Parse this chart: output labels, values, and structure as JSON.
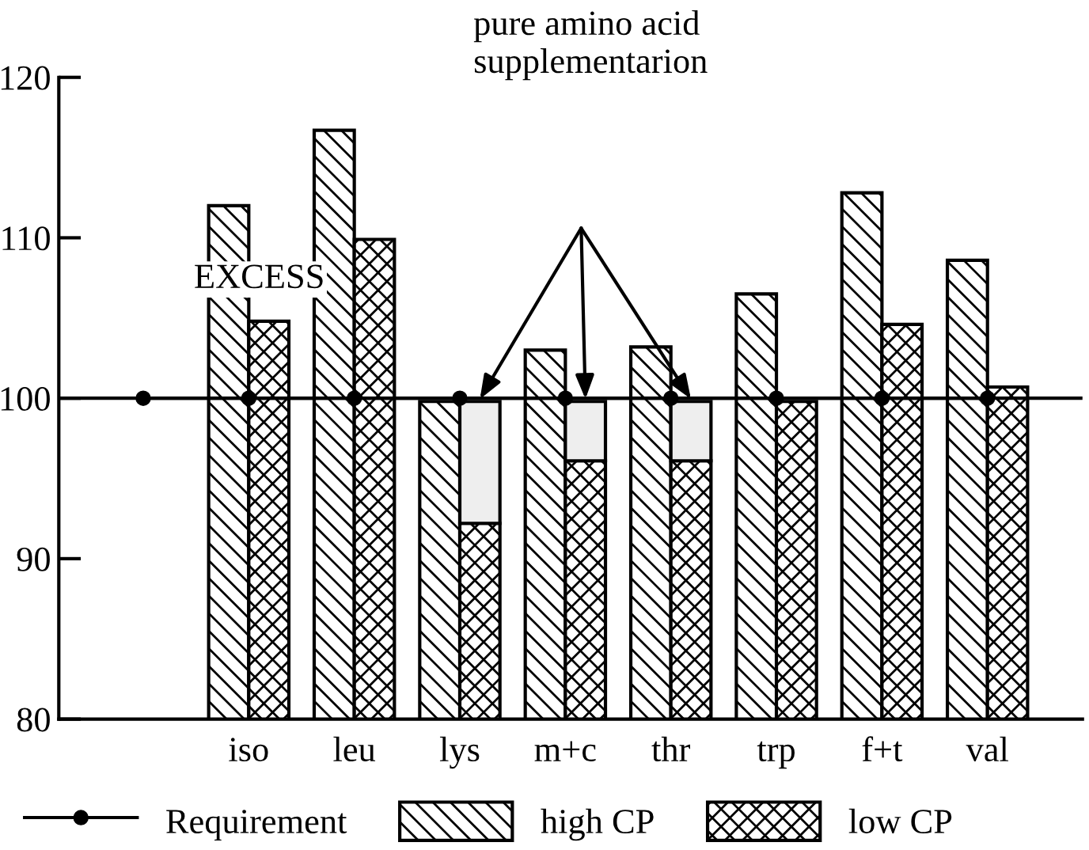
{
  "chart_data": {
    "type": "bar",
    "categories": [
      null,
      "iso",
      "leu",
      "lys",
      "m+c",
      "thr",
      "trp",
      "f+t",
      "val"
    ],
    "series": [
      {
        "name": "high CP",
        "color": "#000000",
        "values": [
          null,
          112.0,
          116.7,
          99.8,
          103.0,
          103.2,
          106.5,
          112.8,
          108.6
        ]
      },
      {
        "name": "low CP",
        "color": "#000000",
        "values": [
          null,
          104.8,
          109.9,
          92.2,
          96.1,
          96.1,
          99.8,
          104.6,
          100.7
        ]
      },
      {
        "color": "#eeeeee",
        "base": [
          null,
          null,
          null,
          92.2,
          96.1,
          96.1,
          null,
          null,
          null
        ],
        "values": [
          null,
          null,
          null,
          7.6,
          3.7,
          3.7,
          null,
          null,
          null
        ]
      },
      {
        "name": "Requirement",
        "type": "line",
        "color": "#000000",
        "marker": "circle",
        "line_style": "solid",
        "values": [
          100,
          100,
          100,
          100,
          100,
          100,
          100,
          100,
          100
        ]
      }
    ],
    "ref_lines": [
      {
        "axis": "y",
        "value": 100,
        "color": "#000000"
      }
    ],
    "annotations": [
      "pure amino acid\nsupplementarion",
      "EXCESS"
    ],
    "ylim": [
      80,
      120
    ],
    "yticks": [
      80,
      90,
      100,
      110,
      120
    ],
    "grid": false,
    "legend": "bottom"
  }
}
